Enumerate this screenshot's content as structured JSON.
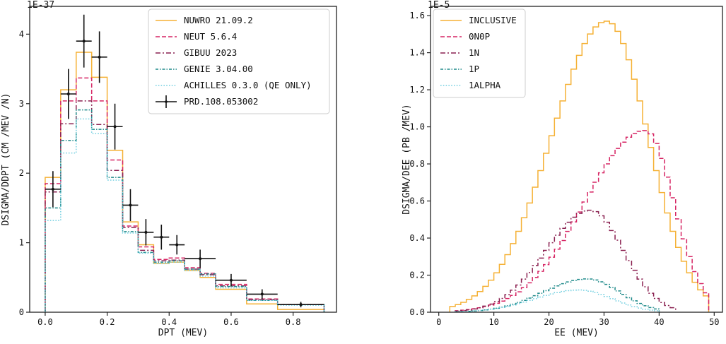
{
  "colors": {
    "nuwro": "#f5b135",
    "neut": "#d62463",
    "gibuu": "#8a2050",
    "genie": "#1f8a8a",
    "achilles": "#72cfe0",
    "data": "#111111"
  },
  "chart_data": [
    {
      "type": "line",
      "subtype": "step-histogram",
      "exponent_label": "1E-37",
      "xlabel": "DPT (MEV)",
      "ylabel": "DSIGMA/DDPT (CM /MEV /N)",
      "xlim": [
        -0.05,
        0.94
      ],
      "ylim": [
        0,
        4.4
      ],
      "xticks": [
        {
          "value": 0.0,
          "label": "0.0"
        },
        {
          "value": 0.2,
          "label": "0.2"
        },
        {
          "value": 0.4,
          "label": "0.4"
        },
        {
          "value": 0.6,
          "label": "0.6"
        },
        {
          "value": 0.8,
          "label": "0.8"
        }
      ],
      "yticks": [
        {
          "value": 0,
          "label": "0"
        },
        {
          "value": 1,
          "label": "1"
        },
        {
          "value": 2,
          "label": "2"
        },
        {
          "value": 3,
          "label": "3"
        },
        {
          "value": 4,
          "label": "4"
        }
      ],
      "bin_edges": [
        0.0,
        0.05,
        0.1,
        0.15,
        0.2,
        0.25,
        0.3,
        0.35,
        0.4,
        0.45,
        0.5,
        0.55,
        0.65,
        0.75,
        0.9
      ],
      "legend_position": "top-right",
      "series": [
        {
          "name": "NUWRO 21.09.2",
          "color_key": "nuwro",
          "style": "solid",
          "values": [
            1.94,
            3.2,
            3.74,
            3.38,
            2.33,
            1.3,
            0.97,
            0.7,
            0.72,
            0.6,
            0.5,
            0.33,
            0.12,
            0.04
          ]
        },
        {
          "name": "NEUT 5.6.4",
          "color_key": "neut",
          "style": "dashed",
          "values": [
            1.85,
            3.04,
            3.37,
            3.04,
            2.19,
            1.24,
            0.94,
            0.76,
            0.78,
            0.64,
            0.56,
            0.4,
            0.19,
            0.11
          ]
        },
        {
          "name": "GIBUU 2023",
          "color_key": "gibuu",
          "style": "dashdot",
          "values": [
            1.73,
            2.71,
            3.04,
            2.7,
            2.04,
            1.22,
            0.89,
            0.74,
            0.75,
            0.62,
            0.54,
            0.38,
            0.18,
            0.11
          ]
        },
        {
          "name": "GENIE 3.04.00",
          "color_key": "genie",
          "style": "dashdot2",
          "values": [
            1.5,
            2.47,
            2.91,
            2.63,
            1.94,
            1.16,
            0.86,
            0.72,
            0.74,
            0.62,
            0.55,
            0.37,
            0.17,
            0.11
          ]
        },
        {
          "name": "ACHILLES 0.3.0 (QE ONLY)",
          "color_key": "achilles",
          "style": "dotted",
          "values": [
            1.32,
            2.29,
            2.78,
            2.57,
            1.9,
            1.14,
            0.85,
            0.7,
            0.72,
            0.6,
            0.52,
            0.35,
            0.17,
            0.1
          ]
        }
      ],
      "data_points": {
        "name": "PRD.108.053002",
        "x": [
          0.025,
          0.075,
          0.125,
          0.175,
          0.225,
          0.275,
          0.325,
          0.375,
          0.425,
          0.5,
          0.6,
          0.7,
          0.825
        ],
        "xerr": [
          0.025,
          0.025,
          0.025,
          0.025,
          0.025,
          0.025,
          0.025,
          0.025,
          0.025,
          0.05,
          0.05,
          0.05,
          0.075
        ],
        "y": [
          1.77,
          3.14,
          3.9,
          3.67,
          2.67,
          1.54,
          1.15,
          1.08,
          0.97,
          0.77,
          0.46,
          0.26,
          0.11
        ],
        "yerr": [
          0.26,
          0.36,
          0.38,
          0.37,
          0.33,
          0.23,
          0.19,
          0.18,
          0.14,
          0.13,
          0.09,
          0.07,
          0.04
        ]
      }
    },
    {
      "type": "line",
      "subtype": "step-histogram",
      "exponent_label": "1E-5",
      "xlabel": "EE (MEV)",
      "ylabel": "DSIGMA/DEE (PB /MEV)",
      "xlim": [
        -1.5,
        51.5
      ],
      "ylim": [
        0,
        1.65
      ],
      "xticks": [
        {
          "value": 0,
          "label": "0"
        },
        {
          "value": 10,
          "label": "10"
        },
        {
          "value": 20,
          "label": "20"
        },
        {
          "value": 30,
          "label": "30"
        },
        {
          "value": 40,
          "label": "40"
        },
        {
          "value": 50,
          "label": "50"
        }
      ],
      "yticks": [
        {
          "value": 0.0,
          "label": "0.0"
        },
        {
          "value": 0.2,
          "label": "0.2"
        },
        {
          "value": 0.4,
          "label": "0.4"
        },
        {
          "value": 0.6,
          "label": "0.6"
        },
        {
          "value": 0.8,
          "label": "0.8"
        },
        {
          "value": 1.0,
          "label": "1.0"
        },
        {
          "value": 1.2,
          "label": "1.2"
        },
        {
          "value": 1.4,
          "label": "1.4"
        },
        {
          "value": 1.6,
          "label": "1.6"
        }
      ],
      "legend_position": "top-left",
      "series": [
        {
          "name": "INCLUSIVE",
          "color_key": "nuwro",
          "style": "solid",
          "x_range": [
            2,
            49
          ],
          "peak_x": 30.5,
          "peak_y": 1.57,
          "sigma_left": 10.0,
          "sigma_right": 7.5
        },
        {
          "name": "0N0P",
          "color_key": "neut",
          "style": "dashed",
          "x_range": [
            3,
            49
          ],
          "peak_x": 37.5,
          "peak_y": 0.98,
          "sigma_left": 11.0,
          "sigma_right": 5.2
        },
        {
          "name": "1N",
          "color_key": "gibuu",
          "style": "dashdot",
          "x_range": [
            3,
            43
          ],
          "peak_x": 27.5,
          "peak_y": 0.55,
          "sigma_left": 8.0,
          "sigma_right": 6.0
        },
        {
          "name": "1P",
          "color_key": "genie",
          "style": "dashdot2",
          "x_range": [
            3,
            40
          ],
          "peak_x": 27.0,
          "peak_y": 0.18,
          "sigma_left": 8.0,
          "sigma_right": 5.8
        },
        {
          "name": "1ALPHA",
          "color_key": "achilles",
          "style": "dotted",
          "x_range": [
            3,
            40
          ],
          "peak_x": 25.5,
          "peak_y": 0.12,
          "sigma_left": 8.0,
          "sigma_right": 6.0
        }
      ]
    }
  ]
}
